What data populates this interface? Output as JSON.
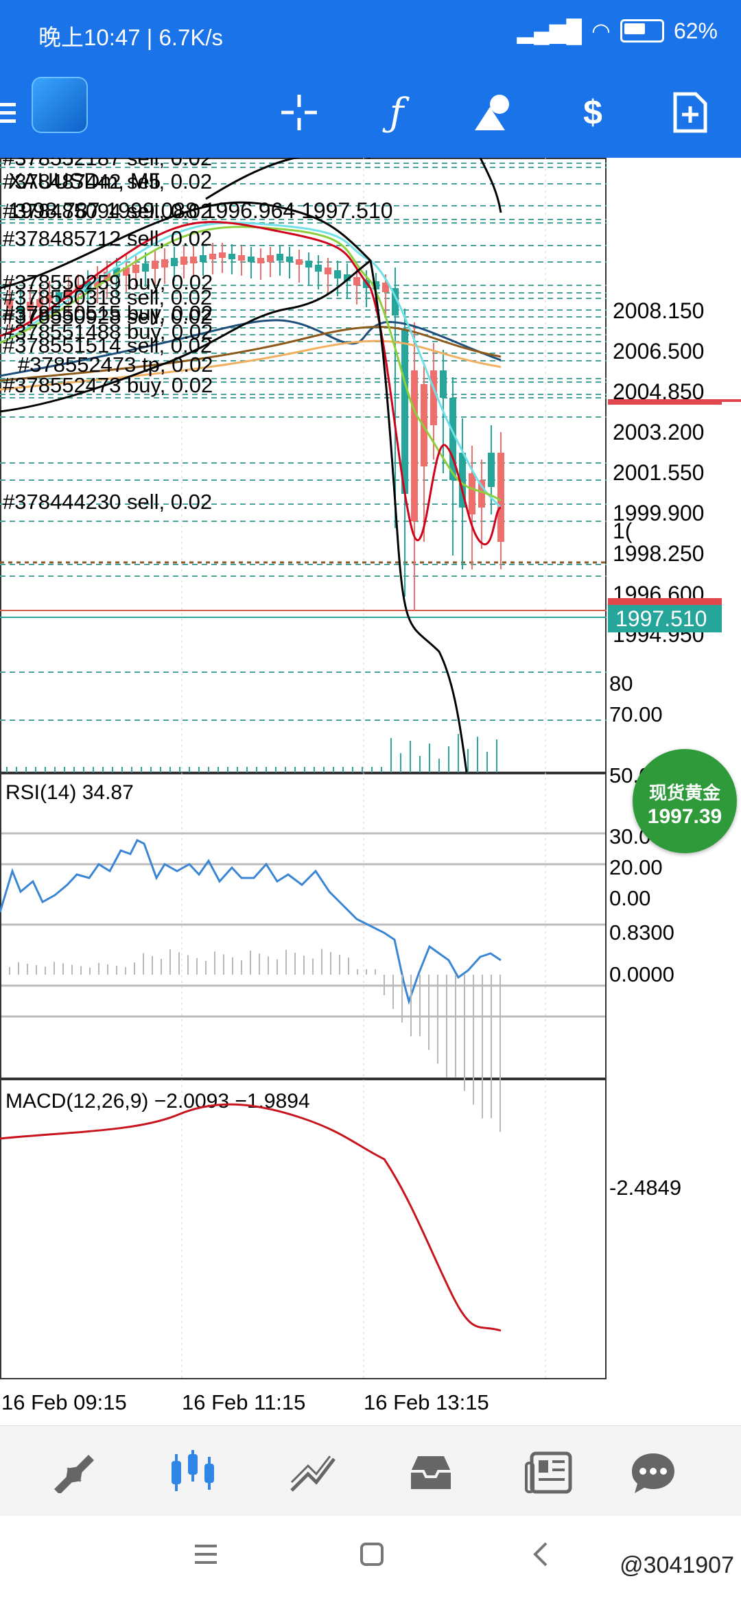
{
  "status_bar": {
    "time": "晚上10:47 | 6.7K/s",
    "battery": "62%"
  },
  "chart": {
    "symbol_timeframe": "XAUUSDm, M5",
    "ohlc_line": "1998.787 1999.088 1996.964 1997.510",
    "current_price_tag": "1997.510",
    "price_axis": [
      "2008.150",
      "2006.500",
      "2004.850",
      "2003.200",
      "2001.550",
      "1999.900",
      "1998.250",
      "1996.600",
      "1994.950"
    ],
    "price_axis_top_partial": "1(",
    "rsi_axis_partial_80": "80",
    "orders": [
      {
        "text": "#378552187 sell, 0.02"
      },
      {
        "text": "#378487442 sell, 0.02"
      },
      {
        "text": "#378485094 sell, 0.02"
      },
      {
        "text": "#378485712 sell, 0.02"
      },
      {
        "text": "#378550259 buy, 0.02"
      },
      {
        "text": "#378550318 sell, 0.02"
      },
      {
        "text": "#378550515 buy, 0.02"
      },
      {
        "text": "#378550928 sell, 0.02"
      },
      {
        "text": "#378551488 buy, 0.02"
      },
      {
        "text": "#378551514 sell, 0.02"
      },
      {
        "text": "#378552473 tp, 0.02"
      },
      {
        "text": "#378552473 buy, 0.02"
      },
      {
        "text": "#378444230 sell, 0.02"
      }
    ],
    "rsi": {
      "label": "RSI(14) 34.87",
      "levels": [
        "70.00",
        "50.00",
        "30.00",
        "20.00",
        "0.00"
      ]
    },
    "macd": {
      "label": "MACD(12,26,9) −2.0093 −1.9894",
      "levels": [
        "0.8300",
        "0.0000",
        "-2.4849"
      ]
    },
    "time_axis": [
      "16 Feb 09:15",
      "16 Feb 11:15",
      "16 Feb 13:15"
    ]
  },
  "badge": {
    "title": "现货黄金",
    "price": "1997.39"
  },
  "watermark": "@3041907",
  "colors": {
    "toolbar": "#1a73e8",
    "bull": "#26a69a",
    "bear": "#ef5350",
    "ma_red": "#d0021b",
    "ma_green": "#7ed321",
    "ma_cyan": "#50e3c2",
    "badge": "#2e9a3a"
  }
}
